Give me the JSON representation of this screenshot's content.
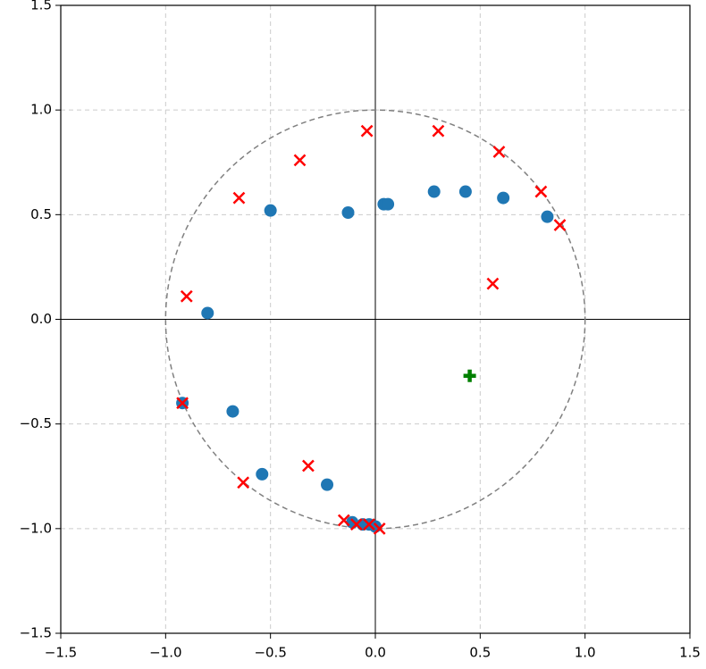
{
  "chart_data": {
    "type": "scatter",
    "xlim": [
      -1.5,
      1.5
    ],
    "ylim": [
      -1.5,
      1.5
    ],
    "xticks": [
      {
        "value": -1.5,
        "label": "−1.5"
      },
      {
        "value": -1.0,
        "label": "−1.0"
      },
      {
        "value": -0.5,
        "label": "−0.5"
      },
      {
        "value": 0,
        "label": "0.0"
      },
      0.5,
      {
        "value": 1,
        "label": "1.0"
      },
      1.5
    ],
    "yticks": [
      {
        "value": -1.5,
        "label": "−1.5"
      },
      {
        "value": -1.0,
        "label": "−1.0"
      },
      {
        "value": -0.5,
        "label": "−0.5"
      },
      {
        "value": 0,
        "label": "0.0"
      },
      0.5,
      {
        "value": 1,
        "label": "1.0"
      },
      1.5
    ],
    "grid": true,
    "circle_radius": 1,
    "series": [
      {
        "marker": "o",
        "color": "#1f77b4",
        "x": [
          -0.5,
          -0.13,
          0.04,
          0.06,
          0.28,
          0.43,
          0.61,
          0.82,
          -0.8,
          -0.92,
          -0.68,
          -0.54,
          -0.23,
          -0.11,
          -0.06,
          -0.03,
          0.0
        ],
        "y": [
          0.52,
          0.51,
          0.55,
          0.55,
          0.61,
          0.61,
          0.58,
          0.49,
          0.03,
          -0.4,
          -0.44,
          -0.74,
          -0.79,
          -0.97,
          -0.98,
          -0.98,
          -0.99
        ]
      },
      {
        "marker": "x",
        "color": "#ff0000",
        "x": [
          -0.04,
          0.3,
          0.59,
          0.79,
          0.88,
          -0.36,
          -0.65,
          -0.9,
          0.56,
          -0.92,
          -0.32,
          -0.63,
          -0.15,
          -0.09,
          -0.03,
          0.02
        ],
        "y": [
          0.9,
          0.9,
          0.8,
          0.61,
          0.45,
          0.76,
          0.58,
          0.11,
          0.17,
          -0.4,
          -0.7,
          -0.78,
          -0.96,
          -0.98,
          -0.98,
          -1.0
        ]
      },
      {
        "marker": "P",
        "color": "#008000",
        "x": [
          0.45
        ],
        "y": [
          -0.27
        ]
      }
    ]
  }
}
